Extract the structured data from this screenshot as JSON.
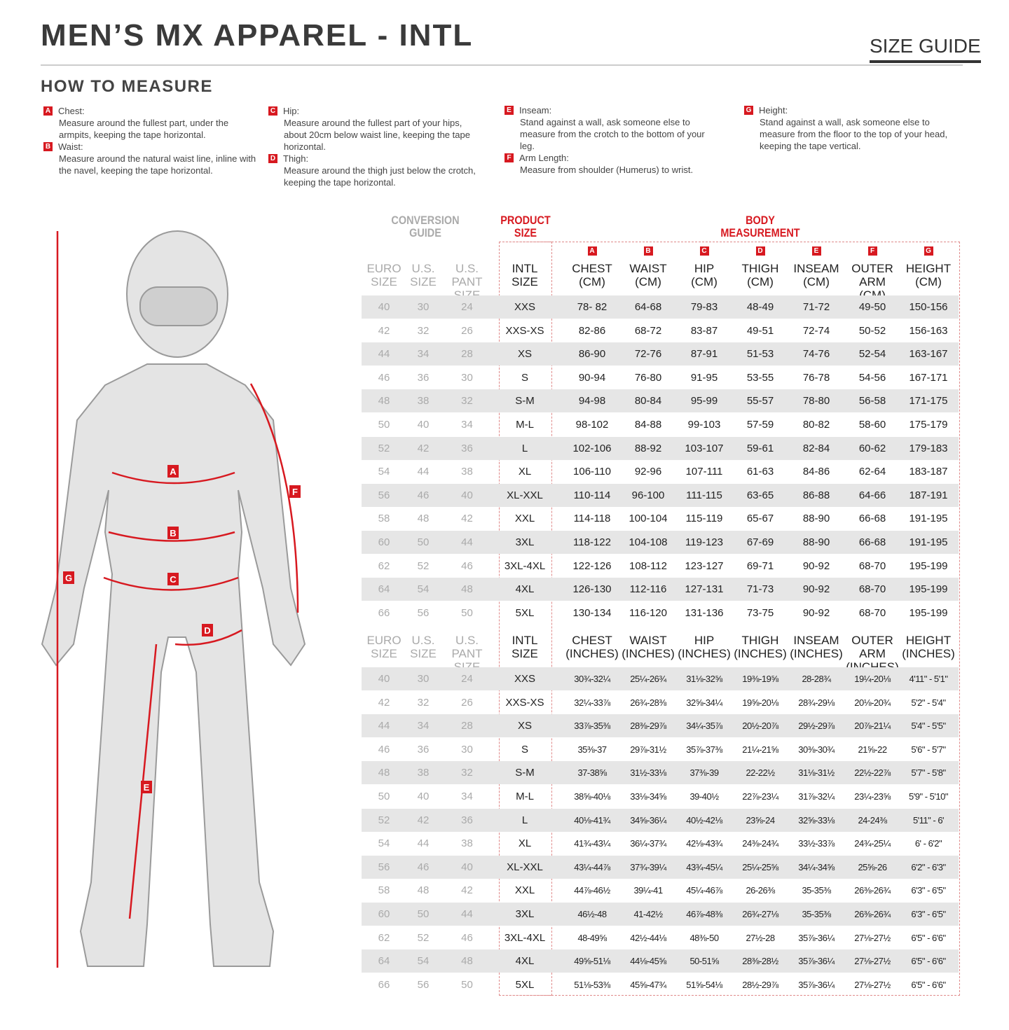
{
  "header": {
    "title": "MEN’S MX APPAREL - INTL",
    "size_guide": "SIZE GUIDE"
  },
  "how_to_measure": {
    "title": "HOW TO MEASURE",
    "items": [
      {
        "letter": "A",
        "label": "Chest:",
        "desc": "Measure around the fullest part, under the armpits, keeping the tape horizontal."
      },
      {
        "letter": "B",
        "label": "Waist:",
        "desc": "Measure around the natural waist line, inline with the navel, keeping the tape horizontal."
      },
      {
        "letter": "C",
        "label": "Hip:",
        "desc": "Measure around the fullest part of your hips, about 20cm below waist line, keeping the tape horizontal."
      },
      {
        "letter": "D",
        "label": "Thigh:",
        "desc": "Measure around the thigh just below the crotch, keeping the tape horizontal."
      },
      {
        "letter": "E",
        "label": "Inseam:",
        "desc": "Stand against a wall, ask someone else to measure from the crotch to the bottom of your leg."
      },
      {
        "letter": "F",
        "label": "Arm Length:",
        "desc": "Measure from shoulder (Humerus) to wrist."
      },
      {
        "letter": "G",
        "label": "Height:",
        "desc": "Stand against a wall, ask someone else to measure from the floor to the top of your head, keeping the tape vertical."
      }
    ]
  },
  "colors": {
    "accent": "#d71920",
    "muted": "#aaaaaa",
    "stripe": "#e6e6e6"
  },
  "table": {
    "group_headers": {
      "conversion": "CONVERSION\nGUIDE",
      "product": "PRODUCT\nSIZE",
      "body": "BODY\nMEASUREMENT"
    },
    "letters": [
      "A",
      "B",
      "C",
      "D",
      "E",
      "F",
      "G"
    ],
    "cm_headers": [
      "EURO\nSIZE",
      "U.S.\nSIZE",
      "U.S.\nPANT SIZE",
      "INTL\nSIZE",
      "CHEST\n(CM)",
      "WAIST\n(CM)",
      "HIP\n(CM)",
      "THIGH\n(CM)",
      "INSEAM\n(CM)",
      "OUTER\nARM (CM)",
      "HEIGHT\n(CM)"
    ],
    "in_headers": [
      "EURO\nSIZE",
      "U.S.\nSIZE",
      "U.S.\nPANT SIZE",
      "INTL\nSIZE",
      "CHEST\n(INCHES)",
      "WAIST\n(INCHES)",
      "HIP\n(INCHES)",
      "THIGH\n(INCHES)",
      "INSEAM\n(INCHES)",
      "OUTER ARM\n(INCHES)",
      "HEIGHT\n(INCHES)"
    ],
    "conversion": [
      [
        "40",
        "30",
        "24"
      ],
      [
        "42",
        "32",
        "26"
      ],
      [
        "44",
        "34",
        "28"
      ],
      [
        "46",
        "36",
        "30"
      ],
      [
        "48",
        "38",
        "32"
      ],
      [
        "50",
        "40",
        "34"
      ],
      [
        "52",
        "42",
        "36"
      ],
      [
        "54",
        "44",
        "38"
      ],
      [
        "56",
        "46",
        "40"
      ],
      [
        "58",
        "48",
        "42"
      ],
      [
        "60",
        "50",
        "44"
      ],
      [
        "62",
        "52",
        "46"
      ],
      [
        "64",
        "54",
        "48"
      ],
      [
        "66",
        "56",
        "50"
      ]
    ],
    "intl": [
      "XXS",
      "XXS-XS",
      "XS",
      "S",
      "S-M",
      "M-L",
      "L",
      "XL",
      "XL-XXL",
      "XXL",
      "3XL",
      "3XL-4XL",
      "4XL",
      "5XL"
    ],
    "cm": [
      [
        "78- 82",
        "64-68",
        "79-83",
        "48-49",
        "71-72",
        "49-50",
        "150-156"
      ],
      [
        "82-86",
        "68-72",
        "83-87",
        "49-51",
        "72-74",
        "50-52",
        "156-163"
      ],
      [
        "86-90",
        "72-76",
        "87-91",
        "51-53",
        "74-76",
        "52-54",
        "163-167"
      ],
      [
        "90-94",
        "76-80",
        "91-95",
        "53-55",
        "76-78",
        "54-56",
        "167-171"
      ],
      [
        "94-98",
        "80-84",
        "95-99",
        "55-57",
        "78-80",
        "56-58",
        "171-175"
      ],
      [
        "98-102",
        "84-88",
        "99-103",
        "57-59",
        "80-82",
        "58-60",
        "175-179"
      ],
      [
        "102-106",
        "88-92",
        "103-107",
        "59-61",
        "82-84",
        "60-62",
        "179-183"
      ],
      [
        "106-110",
        "92-96",
        "107-111",
        "61-63",
        "84-86",
        "62-64",
        "183-187"
      ],
      [
        "110-114",
        "96-100",
        "111-115",
        "63-65",
        "86-88",
        "64-66",
        "187-191"
      ],
      [
        "114-118",
        "100-104",
        "115-119",
        "65-67",
        "88-90",
        "66-68",
        "191-195"
      ],
      [
        "118-122",
        "104-108",
        "119-123",
        "67-69",
        "88-90",
        "66-68",
        "191-195"
      ],
      [
        "122-126",
        "108-112",
        "123-127",
        "69-71",
        "90-92",
        "68-70",
        "195-199"
      ],
      [
        "126-130",
        "112-116",
        "127-131",
        "71-73",
        "90-92",
        "68-70",
        "195-199"
      ],
      [
        "130-134",
        "116-120",
        "131-136",
        "73-75",
        "90-92",
        "68-70",
        "195-199"
      ]
    ],
    "inches": [
      [
        "30¾-32¼",
        "25¼-26¾",
        "31⅛-32⅝",
        "19⅜-19⅝",
        "28-28¾",
        "19¼-20⅛",
        "4'11\" - 5'1\""
      ],
      [
        "32¼-33⅞",
        "26¾-28⅜",
        "32⅝-34¼",
        "19⅝-20⅛",
        "28¾-29⅛",
        "20⅛-20¾",
        "5'2\" - 5'4\""
      ],
      [
        "33⅞-35⅜",
        "28⅜-29⅞",
        "34¼-35⅞",
        "20½-20⅞",
        "29½-29⅞",
        "20⅞-21¼",
        "5'4\" - 5'5\""
      ],
      [
        "35⅜-37",
        "29⅞-31½",
        "35⅞-37⅜",
        "21¼-21⅝",
        "30⅜-30¾",
        "21⅝-22",
        "5'6\" - 5'7\""
      ],
      [
        "37-38⅝",
        "31½-33⅛",
        "37⅜-39",
        "22-22½",
        "31⅛-31½",
        "22½-22⅞",
        "5'7\" - 5'8\""
      ],
      [
        "38⅝-40⅛",
        "33⅛-34⅝",
        "39-40½",
        "22⅞-23¼",
        "31⅞-32¼",
        "23¼-23⅝",
        "5'9\" - 5'10\""
      ],
      [
        "40⅛-41¾",
        "34⅝-36¼",
        "40½-42⅛",
        "23⅝-24",
        "32⅝-33⅛",
        "24-24⅜",
        "5'11\" - 6'"
      ],
      [
        "41¾-43¼",
        "36¼-37¾",
        "42⅛-43¾",
        "24⅜-24¾",
        "33½-33⅞",
        "24¾-25¼",
        "6' - 6'2\""
      ],
      [
        "43¼-44⅞",
        "37¾-39¼",
        "43¾-45¼",
        "25¼-25⅝",
        "34¼-34⅝",
        "25⅝-26",
        "6'2\" - 6'3\""
      ],
      [
        "44⅞-46½",
        "39¼-41",
        "45¼-46⅞",
        "26-26⅜",
        "35-35⅜",
        "26⅜-26¾",
        "6'3\" - 6'5\""
      ],
      [
        "46½-48",
        "41-42½",
        "46⅞-48⅜",
        "26¾-27⅛",
        "35-35⅜",
        "26⅜-26¾",
        "6'3\" - 6'5\""
      ],
      [
        "48-49⅝",
        "42½-44⅛",
        "48⅜-50",
        "27½-28",
        "35⅞-36¼",
        "27⅛-27½",
        "6'5\" - 6'6\""
      ],
      [
        "49⅝-51⅛",
        "44⅛-45⅝",
        "50-51⅝",
        "28⅜-28½",
        "35⅞-36¼",
        "27⅛-27½",
        "6'5\" - 6'6\""
      ],
      [
        "51⅛-53⅜",
        "45⅝-47¾",
        "51⅝-54⅛",
        "28½-29⅞",
        "35⅞-36¼",
        "27⅛-27½",
        "6'5\" - 6'6\""
      ]
    ]
  }
}
